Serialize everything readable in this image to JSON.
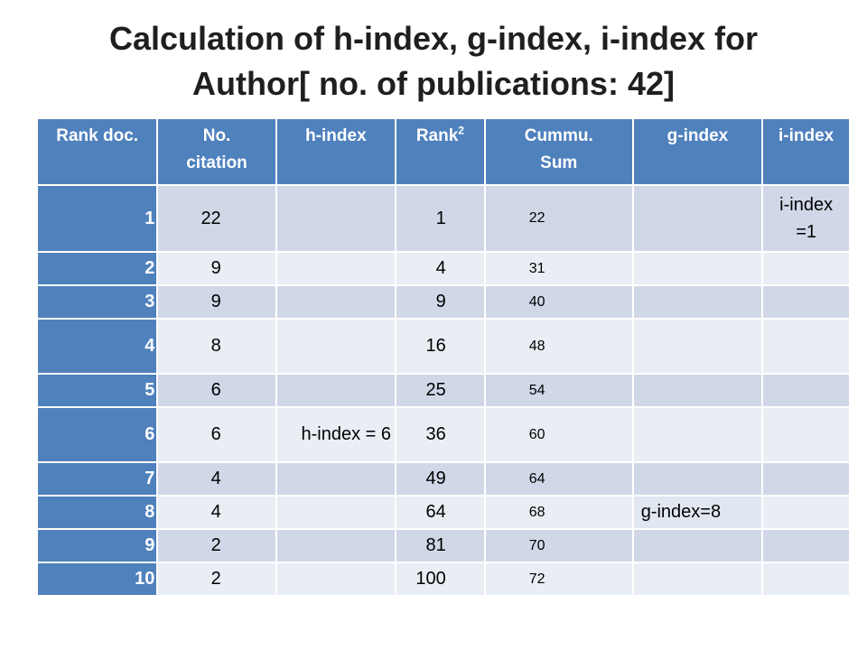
{
  "title": {
    "line1": "Calculation of h-index, g-index, i-index for",
    "line2": "Author[ no. of publications: 42]"
  },
  "table": {
    "headers": {
      "rank": "Rank doc.",
      "citation_1": "No.",
      "citation_2": "citation",
      "h_index": "h-index",
      "rank_sq": "Rank",
      "rank_sq_sup": "2",
      "cum_1": "Cummu.",
      "cum_2": "Sum",
      "g_index": "g-index",
      "i_index": "i-index"
    },
    "rows": [
      {
        "rank": "1",
        "citations": "22",
        "h": "",
        "rank_sq": "1",
        "cum": "22"
      },
      {
        "rank": "2",
        "citations": "9",
        "h": "",
        "rank_sq": "4",
        "cum": "31"
      },
      {
        "rank": "3",
        "citations": "9",
        "h": "",
        "rank_sq": "9",
        "cum": "40"
      },
      {
        "rank": "4",
        "citations": "8",
        "h": "",
        "rank_sq": "16",
        "cum": "48"
      },
      {
        "rank": "5",
        "citations": "6",
        "h": "",
        "rank_sq": "25",
        "cum": "54"
      },
      {
        "rank": "6",
        "citations": "6",
        "h": "h-index = 6",
        "rank_sq": "36",
        "cum": "60"
      },
      {
        "rank": "7",
        "citations": "4",
        "h": "",
        "rank_sq": "49",
        "cum": "64"
      },
      {
        "rank": "8",
        "citations": "4",
        "h": "",
        "rank_sq": "64",
        "cum": "68"
      },
      {
        "rank": "9",
        "citations": "2",
        "h": "",
        "rank_sq": "81",
        "cum": "70"
      },
      {
        "rank": "10",
        "citations": "2",
        "h": "",
        "rank_sq": "100",
        "cum": "72"
      }
    ],
    "i_index_note_1": "i-index",
    "i_index_note_2": "=1",
    "g_index_note": "g-index=8"
  },
  "colors": {
    "header_bg": "#4f81bd",
    "row_odd_bg": "#d0d8e8",
    "row_even_bg": "#e9edf4",
    "header_text": "#ffffff"
  }
}
